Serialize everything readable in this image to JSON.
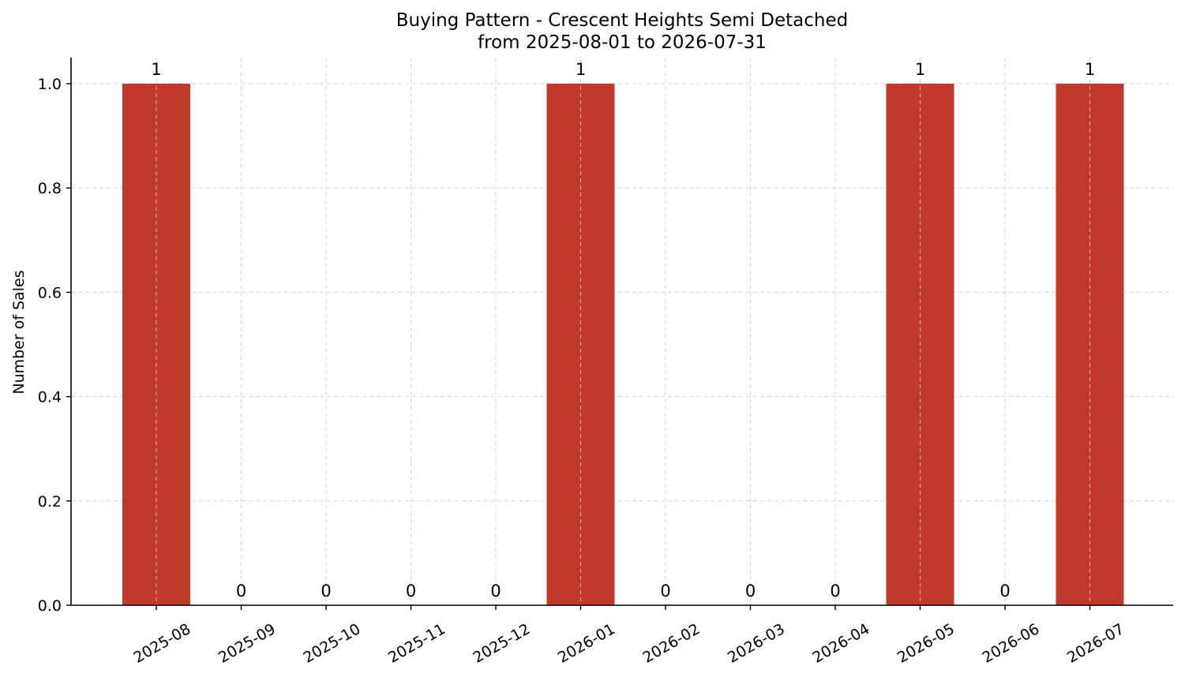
{
  "chart_data": {
    "type": "bar",
    "title": "Buying Pattern - Crescent Heights Semi Detached",
    "subtitle": "from 2025-08-01 to 2026-07-31",
    "xlabel": "",
    "ylabel": "Number of Sales",
    "categories": [
      "2025-08",
      "2025-09",
      "2025-10",
      "2025-11",
      "2025-12",
      "2026-01",
      "2026-02",
      "2026-03",
      "2026-04",
      "2026-05",
      "2026-06",
      "2026-07"
    ],
    "values": [
      1,
      0,
      0,
      0,
      0,
      1,
      0,
      0,
      0,
      1,
      0,
      1
    ],
    "data_labels": [
      "1",
      "0",
      "0",
      "0",
      "0",
      "1",
      "0",
      "0",
      "0",
      "1",
      "0",
      "1"
    ],
    "y_ticks": [
      0.0,
      0.2,
      0.4,
      0.6,
      0.8,
      1.0
    ],
    "y_tick_labels": [
      "0.0",
      "0.2",
      "0.4",
      "0.6",
      "0.8",
      "1.0"
    ],
    "ylim": [
      0,
      1.05
    ],
    "grid": true,
    "bar_color": "#c0392b",
    "legend": "none"
  }
}
